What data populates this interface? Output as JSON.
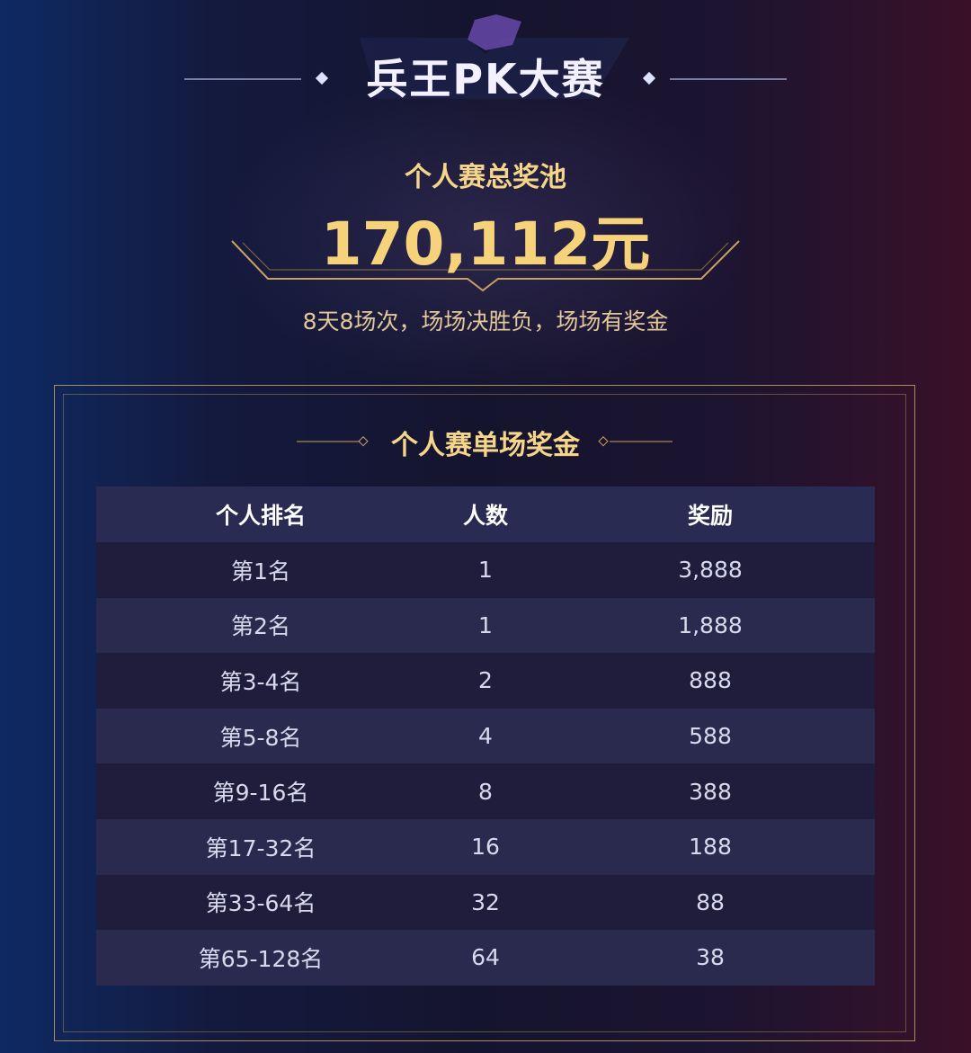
{
  "header": {
    "title": "兵王PK大赛"
  },
  "prize_pool": {
    "label": "个人赛总奖池",
    "amount": "170,112元",
    "subtitle": "8天8场次，场场决胜负，场场有奖金"
  },
  "table": {
    "title": "个人赛单场奖金",
    "columns": [
      "个人排名",
      "人数",
      "奖励"
    ],
    "rows": [
      [
        "第1名",
        "1",
        "3,888"
      ],
      [
        "第2名",
        "1",
        "1,888"
      ],
      [
        "第3-4名",
        "2",
        "888"
      ],
      [
        "第5-8名",
        "4",
        "588"
      ],
      [
        "第9-16名",
        "8",
        "388"
      ],
      [
        "第17-32名",
        "16",
        "188"
      ],
      [
        "第33-64名",
        "32",
        "88"
      ],
      [
        "第65-128名",
        "64",
        "38"
      ]
    ]
  }
}
